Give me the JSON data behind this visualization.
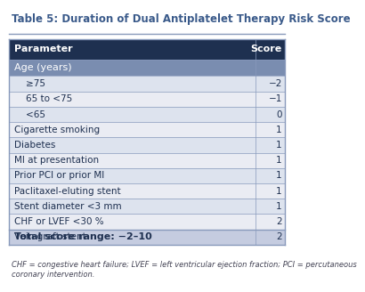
{
  "title": "Table 5: Duration of Dual Antiplatelet Therapy Risk Score",
  "title_color": "#3a5a8a",
  "header": [
    "Parameter",
    "Score"
  ],
  "header_bg": "#1e3050",
  "header_fg": "#ffffff",
  "subheader_text": "Age (years)",
  "subheader_bg": "#7a8db0",
  "subheader_fg": "#ffffff",
  "rows": [
    {
      "label": "    ≥75",
      "score": "−2",
      "alt": true
    },
    {
      "label": "    65 to <75",
      "score": "−1",
      "alt": false
    },
    {
      "label": "    <65",
      "score": "0",
      "alt": true
    },
    {
      "label": "Cigarette smoking",
      "score": "1",
      "alt": false
    },
    {
      "label": "Diabetes",
      "score": "1",
      "alt": true
    },
    {
      "label": "MI at presentation",
      "score": "1",
      "alt": false
    },
    {
      "label": "Prior PCI or prior MI",
      "score": "1",
      "alt": true
    },
    {
      "label": "Paclitaxel-eluting stent",
      "score": "1",
      "alt": false
    },
    {
      "label": "Stent diameter <3 mm",
      "score": "1",
      "alt": true
    },
    {
      "label": "CHF or LVEF <30 %",
      "score": "2",
      "alt": false
    },
    {
      "label": "Vein graft stent",
      "score": "2",
      "alt": true
    }
  ],
  "total_text": "Total score range: −2–10",
  "footnote": "CHF = congestive heart failure; LVEF = left ventricular ejection fraction; PCI = percutaneous coronary intervention.",
  "row_alt_bg": "#dde3ee",
  "row_normal_bg": "#eaecf3",
  "total_bg": "#c5cce0",
  "border_color": "#8899bb",
  "title_fontsize": 8.5,
  "header_fontsize": 8.0,
  "row_fontsize": 7.5,
  "footnote_fontsize": 6.0,
  "col_split": 0.895
}
